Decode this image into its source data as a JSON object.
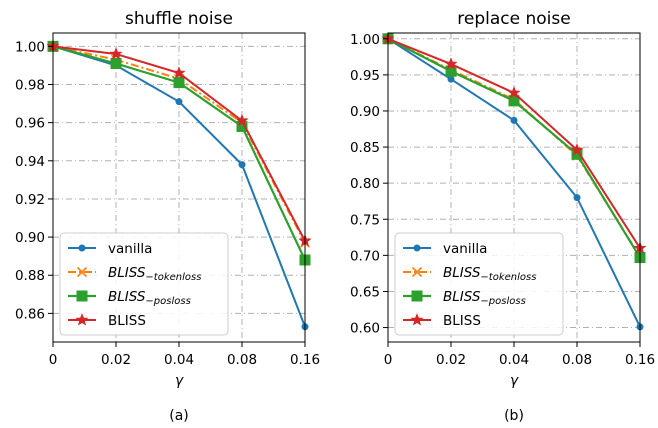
{
  "chart_data": [
    {
      "type": "line",
      "title": "shuffle noise",
      "xlabel": "γ",
      "caption": "(a)",
      "categories": [
        "0",
        "0.02",
        "0.04",
        "0.08",
        "0.16"
      ],
      "ylim": [
        0.845,
        1.007
      ],
      "yticks": [
        1.0,
        0.98,
        0.96,
        0.94,
        0.92,
        0.9,
        0.88,
        0.86
      ],
      "ytick_labels": [
        "1.00",
        "0.98",
        "0.96",
        "0.94",
        "0.92",
        "0.90",
        "0.88",
        "0.86"
      ],
      "grid": true,
      "legend_position": "lower-left",
      "series": [
        {
          "name": "vanilla",
          "sub": "",
          "style": "vanilla",
          "values": [
            1.0,
            0.99,
            0.971,
            0.938,
            0.853
          ]
        },
        {
          "name": "BLISS",
          "sub": "−tokenloss",
          "style": "tokenloss",
          "values": [
            1.0,
            0.993,
            0.983,
            0.96,
            0.897
          ]
        },
        {
          "name": "BLISS",
          "sub": "−posloss",
          "style": "posloss",
          "values": [
            1.0,
            0.991,
            0.981,
            0.958,
            0.888
          ]
        },
        {
          "name": "BLISS",
          "sub": "",
          "style": "bliss",
          "values": [
            1.0,
            0.996,
            0.986,
            0.961,
            0.898
          ]
        }
      ]
    },
    {
      "type": "line",
      "title": "replace noise",
      "xlabel": "γ",
      "caption": "(b)",
      "categories": [
        "0",
        "0.02",
        "0.04",
        "0.08",
        "0.16"
      ],
      "ylim": [
        0.58,
        1.008
      ],
      "yticks": [
        1.0,
        0.95,
        0.9,
        0.85,
        0.8,
        0.75,
        0.7,
        0.65,
        0.6
      ],
      "ytick_labels": [
        "1.00",
        "0.95",
        "0.90",
        "0.85",
        "0.80",
        "0.75",
        "0.70",
        "0.65",
        "0.60"
      ],
      "grid": true,
      "legend_position": "lower-left",
      "series": [
        {
          "name": "vanilla",
          "sub": "",
          "style": "vanilla",
          "values": [
            1.0,
            0.944,
            0.887,
            0.78,
            0.601
          ]
        },
        {
          "name": "BLISS",
          "sub": "−tokenloss",
          "style": "tokenloss",
          "values": [
            1.0,
            0.957,
            0.916,
            0.838,
            0.698
          ]
        },
        {
          "name": "BLISS",
          "sub": "−posloss",
          "style": "posloss",
          "values": [
            1.0,
            0.955,
            0.914,
            0.84,
            0.697
          ]
        },
        {
          "name": "BLISS",
          "sub": "",
          "style": "bliss",
          "values": [
            1.0,
            0.965,
            0.925,
            0.846,
            0.71
          ]
        }
      ]
    }
  ],
  "colors": {
    "vanilla": "#1f77b4",
    "tokenloss": "#ff7f0e",
    "posloss": "#2ca02c",
    "bliss": "#d62728"
  }
}
